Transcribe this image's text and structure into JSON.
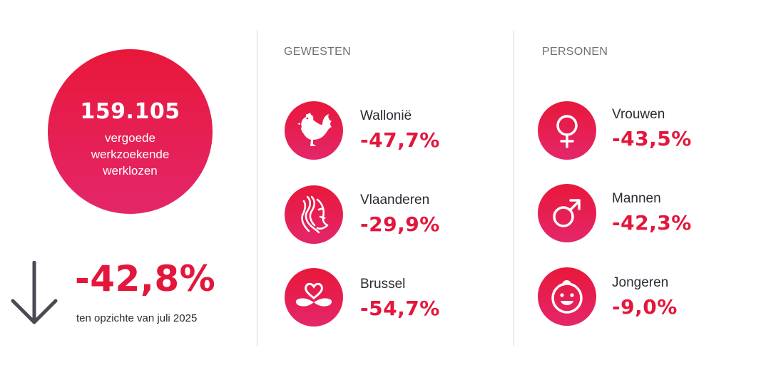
{
  "total": {
    "number": "159.105",
    "label": "vergoede\nwerkzoekende\nwerklozen",
    "change": "-42,8%",
    "caption": "ten opzichte van juli 2025"
  },
  "gewesten": {
    "title": "GEWESTEN",
    "items": [
      {
        "label": "Wallonië",
        "value": "-47,7%",
        "icon": "rooster-icon"
      },
      {
        "label": "Vlaanderen",
        "value": "-29,9%",
        "icon": "lion-icon"
      },
      {
        "label": "Brussel",
        "value": "-54,7%",
        "icon": "iris-icon"
      }
    ]
  },
  "personen": {
    "title": "PERSONEN",
    "items": [
      {
        "label": "Vrouwen",
        "value": "-43,5%",
        "icon": "female-symbol-icon"
      },
      {
        "label": "Mannen",
        "value": "-42,3%",
        "icon": "male-symbol-icon"
      },
      {
        "label": "Jongeren",
        "value": "-9,0%",
        "icon": "child-face-icon"
      }
    ]
  },
  "colors": {
    "accent": "#e3163c",
    "gradient_top": "#e8183a",
    "gradient_bottom": "#e4266a",
    "text": "#2b2b33",
    "muted": "#6e6e76"
  }
}
